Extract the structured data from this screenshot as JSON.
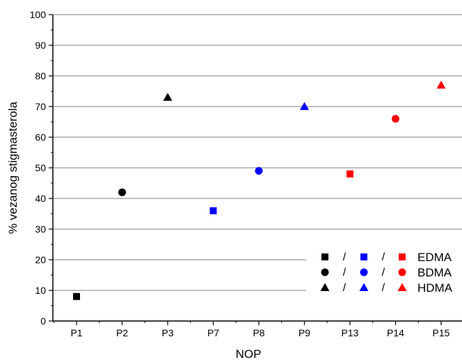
{
  "chart_data": {
    "type": "scatter",
    "xlabel": "NOP",
    "ylabel": "% vezanog stigmasterola",
    "ylim": [
      0,
      100
    ],
    "yticks": [
      0,
      10,
      20,
      30,
      40,
      50,
      60,
      70,
      80,
      90,
      100
    ],
    "grid": true,
    "categories": [
      "P1",
      "P2",
      "P3",
      "P7",
      "P8",
      "P9",
      "P13",
      "P14",
      "P15"
    ],
    "points": [
      {
        "x": "P1",
        "y": 8,
        "marker": "square",
        "color": "#000000"
      },
      {
        "x": "P2",
        "y": 42,
        "marker": "circle",
        "color": "#000000"
      },
      {
        "x": "P3",
        "y": 73,
        "marker": "triangle",
        "color": "#000000"
      },
      {
        "x": "P7",
        "y": 36,
        "marker": "square",
        "color": "#0000ff"
      },
      {
        "x": "P8",
        "y": 49,
        "marker": "circle",
        "color": "#0000ff"
      },
      {
        "x": "P9",
        "y": 70,
        "marker": "triangle",
        "color": "#0000ff"
      },
      {
        "x": "P13",
        "y": 48,
        "marker": "square",
        "color": "#ff0000"
      },
      {
        "x": "P14",
        "y": 66,
        "marker": "circle",
        "color": "#ff0000"
      },
      {
        "x": "P15",
        "y": 77,
        "marker": "triangle",
        "color": "#ff0000"
      }
    ],
    "legend": {
      "placement": "bottom-right",
      "separator": "/",
      "colors": [
        "#000000",
        "#0000ff",
        "#ff0000"
      ],
      "entries": [
        {
          "marker": "square",
          "label": "EDMA"
        },
        {
          "marker": "circle",
          "label": "BDMA"
        },
        {
          "marker": "triangle",
          "label": "HDMA"
        }
      ]
    }
  }
}
